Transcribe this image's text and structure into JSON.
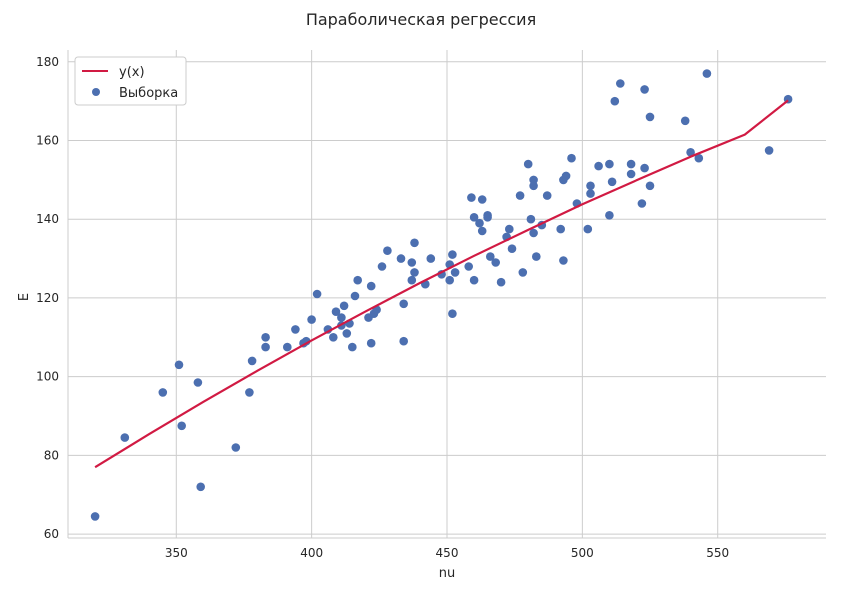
{
  "chart_data": {
    "type": "scatter",
    "title": "Параболическая регрессия",
    "xlabel": "nu",
    "ylabel": "E",
    "xlim": [
      310,
      590
    ],
    "ylim": [
      59,
      183
    ],
    "xticks": [
      350,
      400,
      450,
      500,
      550
    ],
    "yticks": [
      60,
      80,
      100,
      120,
      140,
      160,
      180
    ],
    "grid": true,
    "legend_position": "top-left",
    "colors": {
      "line": "#d11a43",
      "points": "#4c6fb0",
      "grid": "#cccccc"
    },
    "series": [
      {
        "name": "y(x)",
        "kind": "line",
        "x": [
          320,
          340,
          360,
          380,
          400,
          420,
          440,
          460,
          480,
          500,
          520,
          540,
          560,
          576
        ],
        "y": [
          77.0,
          85.4,
          93.6,
          101.5,
          109.2,
          116.6,
          123.8,
          130.7,
          137.3,
          143.8,
          149.9,
          155.9,
          161.5,
          170.2
        ]
      },
      {
        "name": "Выборка",
        "kind": "scatter",
        "points": [
          [
            320,
            64.5
          ],
          [
            331,
            84.5
          ],
          [
            345,
            96
          ],
          [
            351,
            103
          ],
          [
            352,
            87.5
          ],
          [
            358,
            98.5
          ],
          [
            359,
            72
          ],
          [
            372,
            82
          ],
          [
            377,
            96
          ],
          [
            378,
            104
          ],
          [
            383,
            107.5
          ],
          [
            383,
            110
          ],
          [
            391,
            107.5
          ],
          [
            394,
            112
          ],
          [
            397,
            108.5
          ],
          [
            398,
            109
          ],
          [
            400,
            114.5
          ],
          [
            402,
            121
          ],
          [
            406,
            112
          ],
          [
            408,
            110
          ],
          [
            409,
            116.5
          ],
          [
            411,
            113
          ],
          [
            411,
            115
          ],
          [
            412,
            118
          ],
          [
            413,
            111
          ],
          [
            414,
            113.5
          ],
          [
            415,
            107.5
          ],
          [
            416,
            120.5
          ],
          [
            417,
            124.5
          ],
          [
            421,
            115
          ],
          [
            422,
            108.5
          ],
          [
            422,
            123
          ],
          [
            423,
            116
          ],
          [
            424,
            117
          ],
          [
            426,
            128
          ],
          [
            428,
            132
          ],
          [
            433,
            130
          ],
          [
            434,
            118.5
          ],
          [
            434,
            109
          ],
          [
            437,
            124.5
          ],
          [
            437,
            129
          ],
          [
            438,
            126.5
          ],
          [
            438,
            134
          ],
          [
            442,
            123.5
          ],
          [
            444,
            130
          ],
          [
            448,
            126
          ],
          [
            451,
            124.5
          ],
          [
            451,
            128.5
          ],
          [
            452,
            116
          ],
          [
            452,
            131
          ],
          [
            453,
            126.5
          ],
          [
            458,
            128
          ],
          [
            459,
            145.5
          ],
          [
            460,
            124.5
          ],
          [
            460,
            140.5
          ],
          [
            462,
            139
          ],
          [
            463,
            145
          ],
          [
            463,
            137
          ],
          [
            465,
            141
          ],
          [
            465,
            140.5
          ],
          [
            466,
            130.5
          ],
          [
            468,
            129
          ],
          [
            470,
            124
          ],
          [
            472,
            135.5
          ],
          [
            473,
            137.5
          ],
          [
            474,
            132.5
          ],
          [
            477,
            146
          ],
          [
            478,
            126.5
          ],
          [
            480,
            154
          ],
          [
            481,
            140
          ],
          [
            482,
            148.5
          ],
          [
            482,
            150
          ],
          [
            482,
            136.5
          ],
          [
            483,
            130.5
          ],
          [
            485,
            138.5
          ],
          [
            487,
            146
          ],
          [
            492,
            137.5
          ],
          [
            493,
            150
          ],
          [
            493,
            129.5
          ],
          [
            494,
            151
          ],
          [
            496,
            155.5
          ],
          [
            498,
            144
          ],
          [
            502,
            137.5
          ],
          [
            503,
            148.5
          ],
          [
            503,
            146.5
          ],
          [
            506,
            153.5
          ],
          [
            510,
            154
          ],
          [
            510,
            141
          ],
          [
            511,
            149.5
          ],
          [
            512,
            170
          ],
          [
            514,
            174.5
          ],
          [
            518,
            154
          ],
          [
            518,
            151.5
          ],
          [
            522,
            144
          ],
          [
            523,
            153
          ],
          [
            523,
            173
          ],
          [
            525,
            166
          ],
          [
            525,
            148.5
          ],
          [
            538,
            165
          ],
          [
            540,
            157
          ],
          [
            543,
            155.5
          ],
          [
            546,
            177
          ],
          [
            569,
            157.5
          ],
          [
            576,
            170.5
          ]
        ]
      }
    ]
  }
}
